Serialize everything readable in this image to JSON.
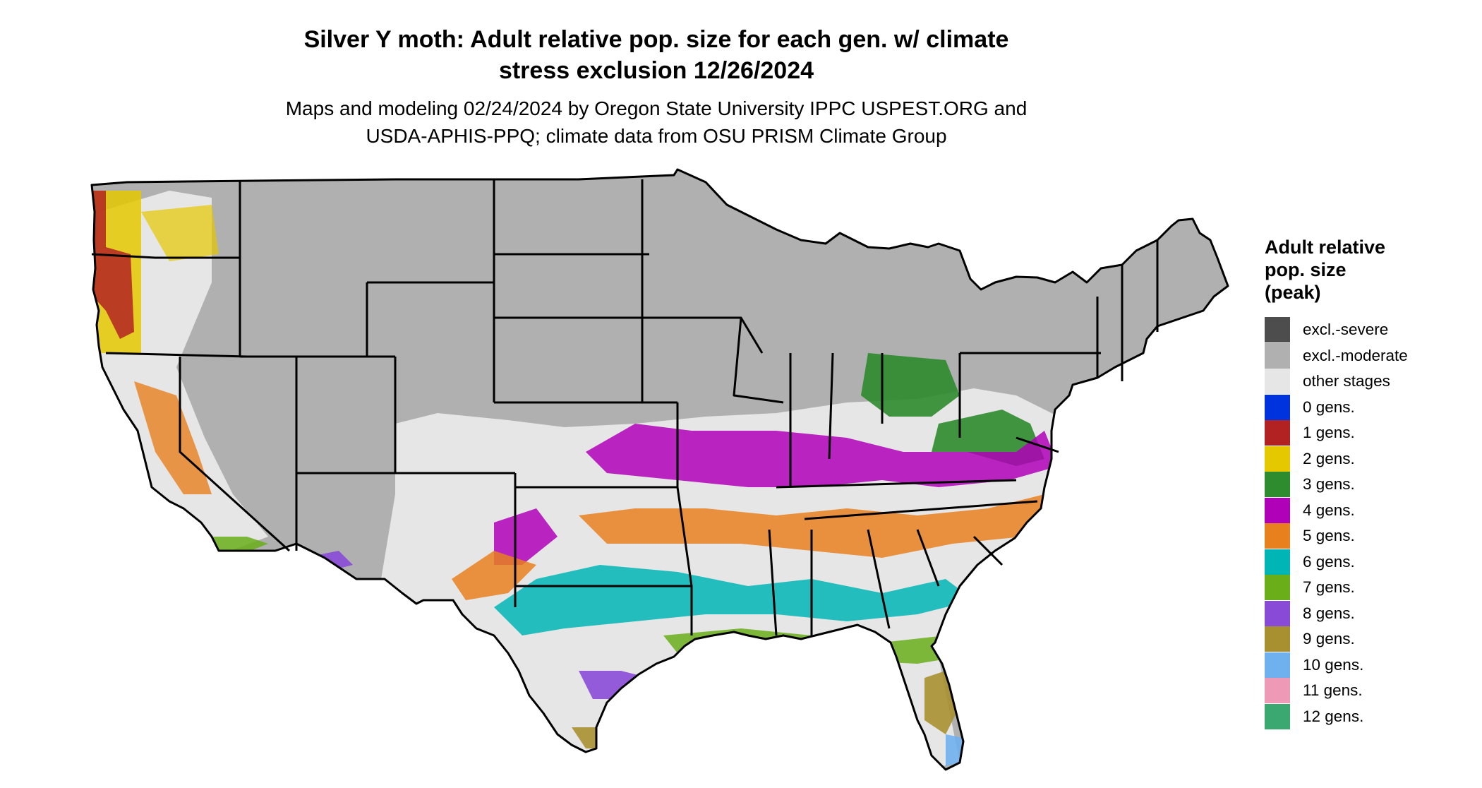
{
  "title": "Silver Y moth: Adult relative pop. size for each gen. w/ climate\nstress exclusion 12/26/2024",
  "subtitle": "Maps and modeling 02/24/2024 by Oregon State University IPPC USPEST.ORG and\nUSDA-APHIS-PPQ; climate data from OSU PRISM Climate Group",
  "legend": {
    "title": "Adult relative\npop. size\n(peak)",
    "items": [
      {
        "label": "excl.-severe",
        "color": "#4d4d4d"
      },
      {
        "label": "excl.-moderate",
        "color": "#b0b0b0"
      },
      {
        "label": "other stages",
        "color": "#e6e6e6"
      },
      {
        "label": "0 gens.",
        "color": "#0033dd"
      },
      {
        "label": "1 gens.",
        "color": "#b22222"
      },
      {
        "label": "2 gens.",
        "color": "#e5c800"
      },
      {
        "label": "3 gens.",
        "color": "#2e8b2e"
      },
      {
        "label": "4 gens.",
        "color": "#b000b8"
      },
      {
        "label": "5 gens.",
        "color": "#e8801e"
      },
      {
        "label": "6 gens.",
        "color": "#00b5b5"
      },
      {
        "label": "7 gens.",
        "color": "#6aae1a"
      },
      {
        "label": "8 gens.",
        "color": "#8a4ad8"
      },
      {
        "label": "9 gens.",
        "color": "#a89030"
      },
      {
        "label": "10 gens.",
        "color": "#6fb0ee"
      },
      {
        "label": "11 gens.",
        "color": "#ee99b5"
      },
      {
        "label": "12 gens.",
        "color": "#3aa870"
      }
    ]
  }
}
